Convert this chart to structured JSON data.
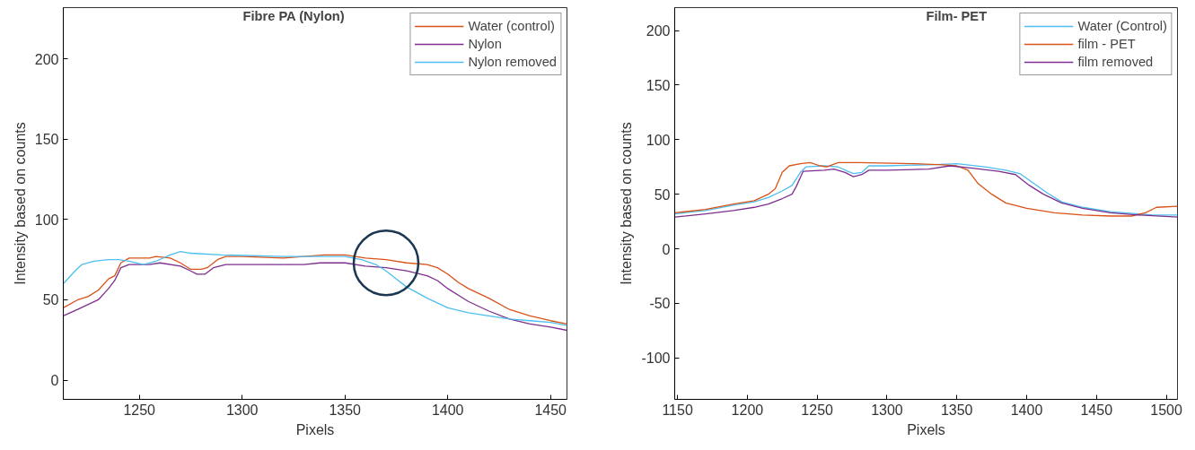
{
  "chart_data": [
    {
      "type": "line",
      "title": "Fibre PA (Nylon)",
      "xlabel": "Pixels",
      "ylabel": "Intensity based on counts",
      "xlim": [
        1213,
        1458
      ],
      "ylim": [
        -12,
        232
      ],
      "xticks": [
        1250,
        1300,
        1350,
        1400,
        1450
      ],
      "yticks": [
        0,
        50,
        100,
        150,
        200
      ],
      "grid": false,
      "legend": "top right",
      "series": [
        {
          "name": "Water (control)",
          "color": "#d95319",
          "x": [
            1213,
            1220,
            1225,
            1230,
            1235,
            1238,
            1241,
            1245,
            1255,
            1258,
            1265,
            1270,
            1275,
            1280,
            1283,
            1288,
            1292,
            1300,
            1320,
            1340,
            1350,
            1360,
            1370,
            1380,
            1390,
            1395,
            1400,
            1405,
            1410,
            1420,
            1430,
            1440,
            1450,
            1458
          ],
          "values": [
            45,
            50,
            52,
            56,
            63,
            65,
            73,
            76,
            76,
            77,
            76,
            73,
            69,
            69,
            70,
            75,
            77,
            77,
            76,
            78,
            78,
            76,
            75,
            73,
            72,
            70,
            66,
            61,
            57,
            51,
            44,
            40,
            37,
            35
          ]
        },
        {
          "name": "Nylon",
          "color": "#7e2f8e",
          "x": [
            1213,
            1220,
            1230,
            1235,
            1238,
            1241,
            1245,
            1255,
            1260,
            1270,
            1275,
            1278,
            1282,
            1286,
            1292,
            1310,
            1330,
            1338,
            1350,
            1360,
            1370,
            1380,
            1390,
            1395,
            1400,
            1410,
            1420,
            1430,
            1440,
            1450,
            1458
          ],
          "values": [
            40,
            44,
            50,
            57,
            62,
            70,
            72,
            72,
            73,
            71,
            68,
            66,
            66,
            70,
            72,
            72,
            72,
            73,
            73,
            71,
            70,
            68,
            65,
            62,
            57,
            49,
            43,
            38,
            35,
            33,
            31
          ]
        },
        {
          "name": "Nylon removed",
          "color": "#4dbeee",
          "x": [
            1213,
            1218,
            1222,
            1228,
            1235,
            1240,
            1245,
            1252,
            1258,
            1265,
            1270,
            1275,
            1290,
            1320,
            1340,
            1350,
            1358,
            1365,
            1370,
            1375,
            1380,
            1390,
            1400,
            1410,
            1420,
            1430,
            1440,
            1450,
            1458
          ],
          "values": [
            60,
            67,
            72,
            74,
            75,
            75,
            74,
            72,
            74,
            78,
            80,
            79,
            78,
            77,
            77,
            77,
            75,
            72,
            68,
            63,
            58,
            51,
            45,
            42,
            40,
            38,
            37,
            36,
            34
          ]
        }
      ]
    },
    {
      "type": "line",
      "title": "Film- PET",
      "xlabel": "Pixels",
      "ylabel": "Intensity based on counts",
      "xlim": [
        1148,
        1508
      ],
      "ylim": [
        -138,
        221
      ],
      "xticks": [
        1150,
        1200,
        1250,
        1300,
        1350,
        1400,
        1450,
        1500
      ],
      "yticks": [
        -100,
        -50,
        0,
        50,
        100,
        150,
        200
      ],
      "grid": false,
      "legend": "top right",
      "series": [
        {
          "name": "Water (Control)",
          "color": "#4dbeee",
          "x": [
            1148,
            1170,
            1190,
            1205,
            1215,
            1225,
            1232,
            1238,
            1242,
            1255,
            1265,
            1272,
            1276,
            1282,
            1287,
            1300,
            1330,
            1350,
            1370,
            1385,
            1395,
            1405,
            1415,
            1425,
            1440,
            1460,
            1480,
            1490,
            1508
          ],
          "values": [
            32,
            35,
            40,
            43,
            47,
            53,
            58,
            70,
            75,
            76,
            75,
            71,
            69,
            70,
            76,
            76,
            77,
            78,
            75,
            72,
            69,
            60,
            51,
            43,
            38,
            34,
            32,
            31,
            31
          ]
        },
        {
          "name": "film - PET",
          "color": "#d95319",
          "x": [
            1148,
            1170,
            1190,
            1205,
            1215,
            1220,
            1225,
            1230,
            1238,
            1245,
            1252,
            1257,
            1265,
            1280,
            1320,
            1340,
            1350,
            1358,
            1365,
            1375,
            1385,
            1400,
            1420,
            1440,
            1460,
            1475,
            1485,
            1493,
            1508
          ],
          "values": [
            33,
            36,
            41,
            44,
            50,
            55,
            70,
            76,
            78,
            79,
            76,
            75,
            79,
            79,
            78,
            77,
            76,
            72,
            60,
            50,
            42,
            37,
            33,
            31,
            30,
            30,
            33,
            38,
            39
          ]
        },
        {
          "name": "film removed",
          "color": "#7e2f8e",
          "x": [
            1148,
            1170,
            1190,
            1205,
            1215,
            1225,
            1232,
            1235,
            1240,
            1255,
            1262,
            1270,
            1276,
            1282,
            1287,
            1300,
            1330,
            1345,
            1360,
            1380,
            1392,
            1402,
            1412,
            1425,
            1440,
            1460,
            1480,
            1508
          ],
          "values": [
            29,
            32,
            35,
            38,
            41,
            46,
            50,
            57,
            71,
            72,
            73,
            70,
            66,
            68,
            72,
            72,
            73,
            76,
            74,
            71,
            68,
            58,
            50,
            42,
            37,
            33,
            31,
            29
          ]
        }
      ]
    }
  ]
}
